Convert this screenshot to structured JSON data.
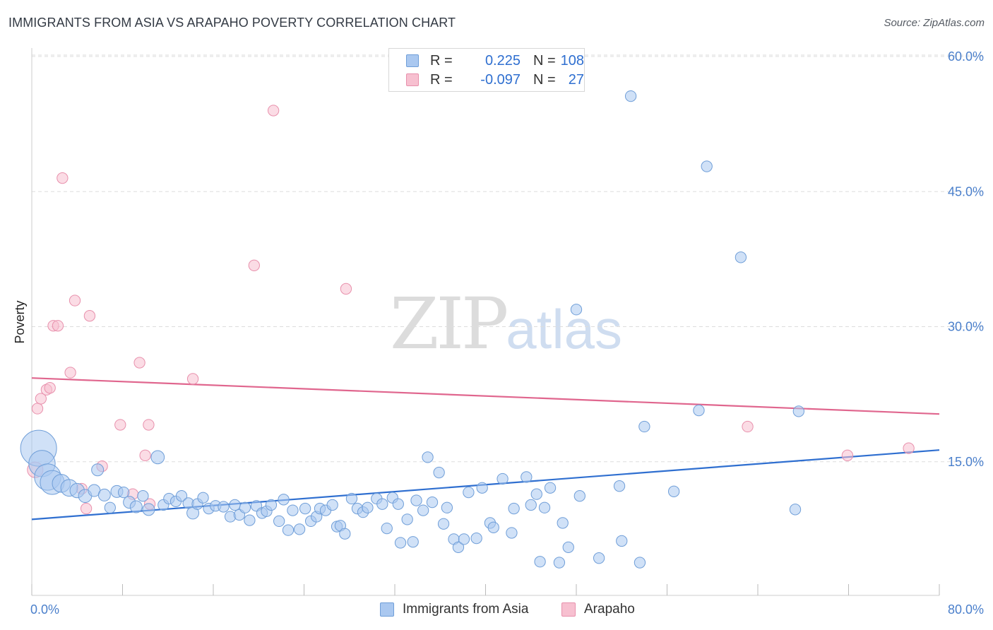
{
  "title": "IMMIGRANTS FROM ASIA VS ARAPAHO POVERTY CORRELATION CHART",
  "source": "Source: ZipAtlas.com",
  "watermark": {
    "zip": "ZIP",
    "atlas": "atlas"
  },
  "legend": {
    "rows": [
      {
        "r_label": "R =",
        "r_value": "0.225",
        "n_label": "N =",
        "n_value": "108"
      },
      {
        "r_label": "R =",
        "r_value": "-0.097",
        "n_label": "N =",
        "n_value": "27"
      }
    ]
  },
  "bottom_legend": {
    "asia": "Immigrants from Asia",
    "arapaho": "Arapaho"
  },
  "colors": {
    "asia_fill": "#aac8f0",
    "asia_stroke": "#6f9ed8",
    "asia_line": "#2f6fd0",
    "arapaho_fill": "#f7c0d0",
    "arapaho_stroke": "#e890ac",
    "arapaho_line": "#e0668e",
    "tick_text": "#4a7fcb",
    "grid": "#dddddd"
  },
  "chart_data": {
    "type": "scatter",
    "title": "IMMIGRANTS FROM ASIA VS ARAPAHO POVERTY CORRELATION CHART",
    "xlabel": "",
    "ylabel": "Poverty",
    "xlim": [
      0,
      80
    ],
    "ylim": [
      0,
      61
    ],
    "x_tick_labels": [
      "0.0%",
      "80.0%"
    ],
    "y_ticks": [
      15,
      30,
      45,
      60
    ],
    "y_tick_labels": [
      "15.0%",
      "30.0%",
      "45.0%",
      "60.0%"
    ],
    "grid": true,
    "series": [
      {
        "name": "Immigrants from Asia",
        "points": [
          [
            0.6,
            16.5,
            3
          ],
          [
            0.9,
            14.8,
            2.2
          ],
          [
            1.4,
            13.3,
            2.2
          ],
          [
            1.8,
            12.7,
            2
          ],
          [
            2.6,
            12.6,
            1.5
          ],
          [
            3.3,
            12.1,
            1.4
          ],
          [
            4.0,
            11.8,
            1.2
          ],
          [
            4.7,
            11.2,
            1.1
          ],
          [
            5.5,
            11.8,
            1
          ],
          [
            5.8,
            14.1,
            1
          ],
          [
            6.4,
            11.3,
            1
          ],
          [
            6.9,
            9.9,
            0.9
          ],
          [
            7.5,
            11.7,
            1
          ],
          [
            8.1,
            11.6,
            0.9
          ],
          [
            8.6,
            10.5,
            1
          ],
          [
            9.2,
            10.0,
            1
          ],
          [
            9.8,
            11.2,
            0.9
          ],
          [
            10.3,
            9.7,
            1
          ],
          [
            11.1,
            15.5,
            1.1
          ],
          [
            11.6,
            10.2,
            0.9
          ],
          [
            12.1,
            10.9,
            0.9
          ],
          [
            12.7,
            10.6,
            0.9
          ],
          [
            13.2,
            11.2,
            0.9
          ],
          [
            13.8,
            10.4,
            0.9
          ],
          [
            14.2,
            9.3,
            1
          ],
          [
            14.6,
            10.3,
            0.9
          ],
          [
            15.1,
            11.0,
            0.9
          ],
          [
            15.6,
            9.8,
            0.9
          ],
          [
            16.2,
            10.1,
            0.9
          ],
          [
            16.9,
            10.0,
            0.9
          ],
          [
            17.5,
            8.9,
            0.9
          ],
          [
            17.9,
            10.2,
            0.9
          ],
          [
            18.3,
            9.1,
            0.9
          ],
          [
            18.8,
            9.9,
            0.9
          ],
          [
            19.2,
            8.5,
            0.9
          ],
          [
            19.8,
            10.1,
            0.9
          ],
          [
            20.3,
            9.3,
            0.9
          ],
          [
            20.7,
            9.5,
            0.9
          ],
          [
            21.1,
            10.2,
            0.9
          ],
          [
            21.8,
            8.4,
            0.9
          ],
          [
            22.2,
            10.8,
            0.9
          ],
          [
            22.6,
            7.4,
            0.9
          ],
          [
            23.0,
            9.6,
            0.9
          ],
          [
            23.6,
            7.5,
            0.9
          ],
          [
            24.1,
            9.8,
            0.9
          ],
          [
            24.6,
            8.4,
            0.9
          ],
          [
            25.1,
            8.9,
            0.9
          ],
          [
            25.4,
            9.8,
            0.9
          ],
          [
            25.9,
            9.6,
            0.9
          ],
          [
            26.5,
            10.2,
            0.9
          ],
          [
            26.9,
            7.8,
            0.9
          ],
          [
            27.2,
            7.9,
            0.9
          ],
          [
            27.6,
            7.0,
            0.9
          ],
          [
            28.2,
            10.9,
            0.9
          ],
          [
            28.7,
            9.8,
            0.9
          ],
          [
            29.2,
            9.4,
            0.9
          ],
          [
            29.6,
            9.9,
            0.9
          ],
          [
            30.4,
            10.9,
            0.9
          ],
          [
            30.9,
            10.3,
            0.9
          ],
          [
            31.3,
            7.6,
            0.9
          ],
          [
            31.8,
            11.0,
            0.9
          ],
          [
            32.3,
            10.3,
            0.9
          ],
          [
            32.5,
            6.0,
            0.9
          ],
          [
            33.1,
            8.6,
            0.9
          ],
          [
            33.6,
            6.1,
            0.9
          ],
          [
            33.9,
            10.7,
            0.9
          ],
          [
            34.5,
            9.6,
            0.9
          ],
          [
            34.9,
            15.5,
            0.9
          ],
          [
            35.3,
            10.5,
            0.9
          ],
          [
            35.9,
            13.8,
            0.9
          ],
          [
            36.3,
            8.1,
            0.9
          ],
          [
            36.6,
            9.9,
            0.9
          ],
          [
            37.2,
            6.4,
            0.9
          ],
          [
            37.6,
            5.5,
            0.9
          ],
          [
            38.1,
            6.4,
            0.9
          ],
          [
            38.5,
            11.6,
            0.9
          ],
          [
            39.2,
            6.5,
            0.9
          ],
          [
            39.7,
            12.1,
            0.9
          ],
          [
            40.4,
            8.2,
            0.9
          ],
          [
            40.7,
            7.7,
            0.9
          ],
          [
            41.5,
            13.1,
            0.9
          ],
          [
            42.3,
            7.1,
            0.9
          ],
          [
            42.5,
            9.8,
            0.9
          ],
          [
            43.6,
            13.3,
            0.9
          ],
          [
            44.0,
            10.2,
            0.9
          ],
          [
            44.5,
            11.4,
            0.9
          ],
          [
            44.8,
            3.9,
            0.9
          ],
          [
            45.2,
            9.9,
            0.9
          ],
          [
            45.7,
            12.1,
            0.9
          ],
          [
            46.5,
            3.8,
            0.9
          ],
          [
            46.8,
            8.2,
            0.9
          ],
          [
            47.3,
            5.5,
            0.9
          ],
          [
            48.0,
            31.9,
            0.9
          ],
          [
            48.3,
            11.2,
            0.9
          ],
          [
            50.0,
            4.3,
            0.9
          ],
          [
            51.8,
            12.3,
            0.9
          ],
          [
            52.0,
            6.2,
            0.9
          ],
          [
            52.8,
            55.6,
            0.9
          ],
          [
            53.6,
            3.8,
            0.9
          ],
          [
            54.0,
            18.9,
            0.9
          ],
          [
            56.6,
            11.7,
            0.9
          ],
          [
            58.8,
            20.7,
            0.9
          ],
          [
            59.5,
            47.8,
            0.9
          ],
          [
            62.5,
            37.7,
            0.9
          ],
          [
            67.3,
            9.7,
            0.9
          ],
          [
            67.6,
            20.6,
            0.9
          ]
        ],
        "trend": {
          "x": [
            0,
            80
          ],
          "y": [
            8.6,
            16.3
          ]
        }
      },
      {
        "name": "Arapaho",
        "points": [
          [
            0.3,
            14.1,
            1.3
          ],
          [
            0.5,
            20.9,
            0.9
          ],
          [
            0.8,
            22.0,
            0.9
          ],
          [
            1.3,
            23.0,
            0.9
          ],
          [
            1.6,
            23.2,
            0.9
          ],
          [
            1.9,
            30.1,
            0.9
          ],
          [
            2.3,
            30.1,
            0.9
          ],
          [
            2.7,
            46.5,
            0.9
          ],
          [
            3.4,
            24.9,
            0.9
          ],
          [
            3.8,
            32.9,
            0.9
          ],
          [
            4.4,
            12.0,
            0.9
          ],
          [
            4.8,
            9.8,
            0.9
          ],
          [
            5.1,
            31.2,
            0.9
          ],
          [
            6.2,
            14.5,
            0.9
          ],
          [
            7.8,
            19.1,
            0.9
          ],
          [
            8.9,
            11.4,
            0.9
          ],
          [
            9.5,
            26.0,
            0.9
          ],
          [
            10.0,
            15.7,
            0.9
          ],
          [
            10.3,
            19.1,
            0.9
          ],
          [
            10.4,
            10.3,
            0.9
          ],
          [
            14.2,
            24.2,
            0.9
          ],
          [
            19.6,
            36.8,
            0.9
          ],
          [
            21.3,
            54.0,
            0.9
          ],
          [
            27.7,
            34.2,
            0.9
          ],
          [
            63.1,
            18.9,
            0.9
          ],
          [
            71.9,
            15.7,
            0.9
          ],
          [
            77.3,
            16.5,
            0.9
          ]
        ],
        "trend": {
          "x": [
            0,
            80
          ],
          "y": [
            24.3,
            20.3
          ]
        }
      }
    ]
  }
}
